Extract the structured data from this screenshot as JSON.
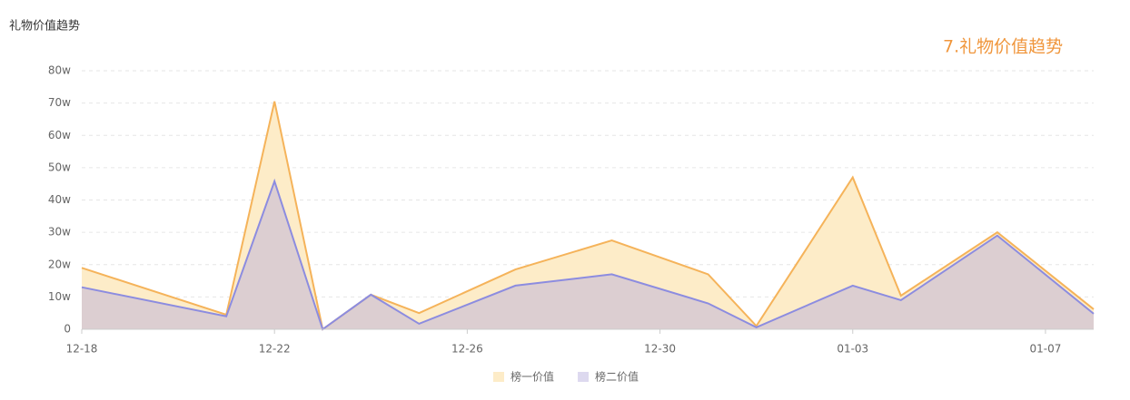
{
  "chart_data": {
    "type": "area",
    "title": "礼物价值趋势",
    "annotation": "7.礼物价值趋势",
    "x": [
      "12-18",
      "12-21",
      "12-22",
      "12-23",
      "12-24",
      "12-25",
      "12-27",
      "12-29",
      "12-31",
      "01-01",
      "01-03",
      "01-04",
      "01-06",
      "01-08"
    ],
    "xlim": [
      "12-18",
      "01-08"
    ],
    "xticks": [
      "12-18",
      "12-22",
      "12-26",
      "12-30",
      "01-03",
      "01-07"
    ],
    "ylim": [
      0,
      80
    ],
    "yticks": [
      0,
      {
        "value": 10,
        "label": "10w"
      },
      {
        "value": 20,
        "label": "20w"
      },
      {
        "value": 30,
        "label": "30w"
      },
      {
        "value": 40,
        "label": "40w"
      },
      {
        "value": 50,
        "label": "50w"
      },
      {
        "value": 60,
        "label": "60w"
      },
      {
        "value": 70,
        "label": "70w"
      },
      {
        "value": 80,
        "label": "80w"
      }
    ],
    "grid": true,
    "legend": "bottom",
    "series": [
      {
        "name": "榜一价值",
        "color": "#f5b35a",
        "fill": "#fdecc8",
        "values": [
          19,
          4.5,
          70.5,
          0,
          10.7,
          5,
          18.5,
          27.5,
          17,
          1,
          47,
          10.4,
          30,
          6.2
        ]
      },
      {
        "name": "榜二价值",
        "color": "#8c8ce0",
        "fill": "rgba(180,170,220,0.45)",
        "values": [
          13,
          4,
          45.8,
          0,
          10.7,
          1.7,
          13.5,
          17,
          8,
          0.6,
          13.5,
          9,
          29,
          4.8
        ]
      }
    ]
  }
}
